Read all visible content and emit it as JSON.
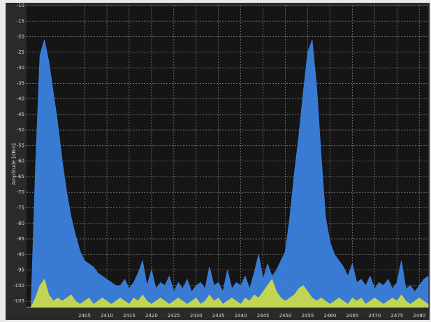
{
  "chart_data": {
    "type": "area",
    "y_label": "Amplitude [dBm]",
    "x": [
      2392,
      2393,
      2394,
      2395,
      2396,
      2397,
      2398,
      2399,
      2400,
      2401,
      2402,
      2403,
      2404,
      2405,
      2406,
      2407,
      2408,
      2409,
      2410,
      2411,
      2412,
      2413,
      2414,
      2415,
      2416,
      2417,
      2418,
      2419,
      2420,
      2421,
      2422,
      2423,
      2424,
      2425,
      2426,
      2427,
      2428,
      2429,
      2430,
      2431,
      2432,
      2433,
      2434,
      2435,
      2436,
      2437,
      2438,
      2439,
      2440,
      2441,
      2442,
      2443,
      2444,
      2445,
      2446,
      2447,
      2448,
      2449,
      2450,
      2451,
      2452,
      2453,
      2454,
      2455,
      2456,
      2457,
      2458,
      2459,
      2460,
      2461,
      2462,
      2463,
      2464,
      2465,
      2466,
      2467,
      2468,
      2469,
      2470,
      2471,
      2472,
      2473,
      2474,
      2475,
      2476,
      2477,
      2478,
      2479,
      2480,
      2481,
      2482
    ],
    "series": [
      {
        "color": "#3b80dc",
        "values": [
          -107,
          -107,
          -62,
          -26,
          -21,
          -28,
          -38,
          -48,
          -60,
          -70,
          -78,
          -84,
          -89,
          -92,
          -93,
          -94,
          -96,
          -97,
          -98,
          -99,
          -100,
          -100,
          -98,
          -101,
          -99,
          -96,
          -92,
          -100,
          -95,
          -101,
          -99,
          -100,
          -97,
          -102,
          -99,
          -101,
          -98,
          -102,
          -100,
          -99,
          -101,
          -94,
          -100,
          -99,
          -102,
          -95,
          -101,
          -99,
          -100,
          -97,
          -101,
          -96,
          -90,
          -98,
          -93,
          -97,
          -95,
          -92,
          -89,
          -78,
          -64,
          -52,
          -38,
          -25,
          -21,
          -36,
          -58,
          -78,
          -86,
          -90,
          -92,
          -94,
          -97,
          -93,
          -99,
          -98,
          -100,
          -97,
          -101,
          -99,
          -100,
          -98,
          -101,
          -99,
          -92,
          -101,
          -100,
          -102,
          -100,
          -98,
          -97
        ]
      },
      {
        "color": "#c9d94c",
        "values": [
          -107,
          -107,
          -104,
          -100,
          -98,
          -103,
          -105,
          -104,
          -105,
          -104,
          -103,
          -105,
          -106,
          -105,
          -104,
          -106,
          -105,
          -104,
          -105,
          -106,
          -105,
          -104,
          -105,
          -106,
          -104,
          -105,
          -103,
          -105,
          -106,
          -105,
          -104,
          -105,
          -106,
          -105,
          -104,
          -105,
          -106,
          -105,
          -104,
          -106,
          -105,
          -103,
          -105,
          -104,
          -106,
          -105,
          -104,
          -105,
          -106,
          -104,
          -105,
          -103,
          -104,
          -102,
          -100,
          -98,
          -102,
          -104,
          -105,
          -104,
          -103,
          -101,
          -100,
          -102,
          -104,
          -105,
          -104,
          -105,
          -106,
          -105,
          -104,
          -105,
          -106,
          -104,
          -105,
          -104,
          -106,
          -105,
          -104,
          -105,
          -106,
          -105,
          -104,
          -105,
          -103,
          -105,
          -106,
          -105,
          -104,
          -105,
          -106
        ]
      }
    ],
    "xlim": [
      2392,
      2482
    ],
    "ylim": [
      -107,
      -10
    ],
    "xticks": [
      2405,
      2410,
      2415,
      2420,
      2425,
      2430,
      2435,
      2440,
      2445,
      2450,
      2455,
      2460,
      2465,
      2470,
      2475,
      2480
    ],
    "yticks": [
      -10,
      -15,
      -20,
      -25,
      -30,
      -35,
      -40,
      -45,
      -50,
      -55,
      -60,
      -65,
      -70,
      -75,
      -80,
      -85,
      -90,
      -95,
      -100,
      -105
    ],
    "grid": true
  }
}
